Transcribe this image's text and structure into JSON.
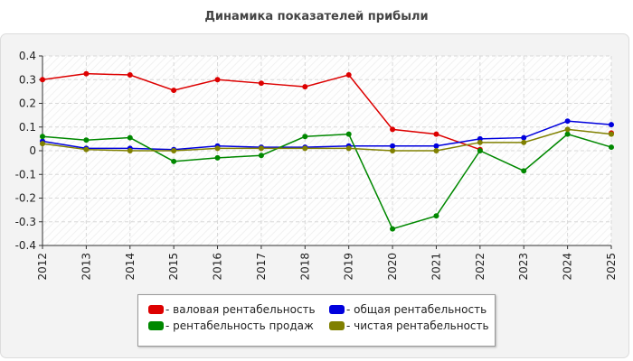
{
  "chart_data": {
    "type": "line",
    "title": "Динамика показателей прибыли",
    "categories": [
      "2012",
      "2013",
      "2014",
      "2015",
      "2016",
      "2017",
      "2018",
      "2019",
      "2020",
      "2021",
      "2022",
      "2023",
      "2024",
      "2025"
    ],
    "ylim": [
      -0.4,
      0.4
    ],
    "yticks": [
      "0.4",
      "0.3",
      "0.2",
      "0.1",
      "0",
      "-0.1",
      "-0.2",
      "-0.3",
      "-0.4"
    ],
    "grid": true,
    "legend_position": "bottom",
    "series": [
      {
        "name": "валовая рентабельность",
        "color": "#dd0000",
        "values": [
          0.3,
          0.325,
          0.32,
          0.255,
          0.3,
          0.285,
          0.27,
          0.32,
          0.09,
          0.07,
          0.005,
          null,
          null,
          0.075
        ]
      },
      {
        "name": "общая рентабельность",
        "color": "#0000dd",
        "values": [
          0.04,
          0.01,
          0.01,
          0.005,
          0.02,
          0.015,
          0.015,
          0.02,
          0.02,
          0.02,
          0.05,
          0.055,
          0.125,
          0.11
        ]
      },
      {
        "name": "рентабельность продаж",
        "color": "#008800",
        "values": [
          0.06,
          0.045,
          0.055,
          -0.045,
          -0.03,
          -0.02,
          0.06,
          0.07,
          -0.33,
          -0.275,
          0.0,
          -0.085,
          0.07,
          0.015
        ]
      },
      {
        "name": "чистая рентабельность",
        "color": "#808000",
        "values": [
          0.03,
          0.005,
          0.0,
          0.0,
          0.01,
          0.01,
          0.01,
          0.01,
          0.0,
          0.0,
          0.035,
          0.035,
          0.09,
          0.07
        ]
      }
    ]
  }
}
